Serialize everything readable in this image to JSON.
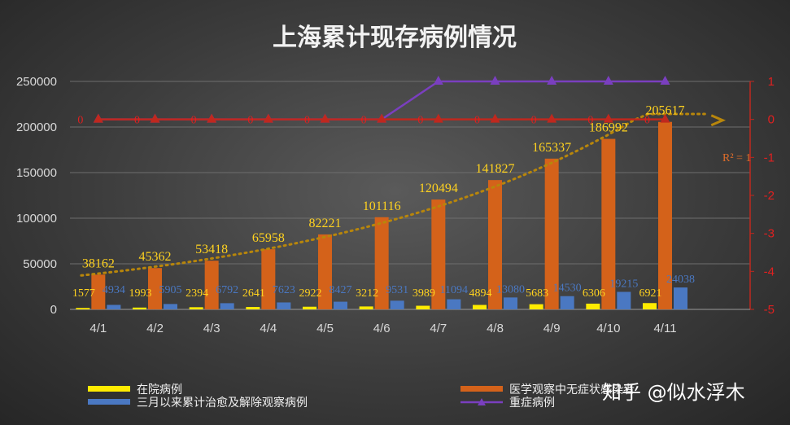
{
  "chart_data": {
    "type": "bar",
    "title": "上海累计现存病例情况",
    "categories": [
      "4/1",
      "4/2",
      "4/3",
      "4/4",
      "4/5",
      "4/6",
      "4/7",
      "4/8",
      "4/9",
      "4/10",
      "4/11"
    ],
    "series": [
      {
        "name": "在院病例",
        "kind": "bar",
        "axis": "left",
        "color": "#ffeb00",
        "values": [
          1577,
          1993,
          2394,
          2641,
          2922,
          3212,
          3989,
          4894,
          5683,
          6306,
          6921
        ]
      },
      {
        "name": "医学观察中无症状感染者",
        "kind": "bar",
        "axis": "left",
        "color": "#d4621a",
        "values": [
          38162,
          45362,
          53418,
          65958,
          82221,
          101116,
          120494,
          141827,
          165337,
          186992,
          205617
        ]
      },
      {
        "name": "三月以来累计治愈及解除观察病例",
        "kind": "bar",
        "axis": "left",
        "color": "#4a78c2",
        "values": [
          4934,
          5905,
          6792,
          7623,
          8427,
          9531,
          11094,
          13080,
          14530,
          19215,
          24038
        ]
      },
      {
        "name": "重症病例",
        "kind": "line",
        "axis": "right",
        "color": "#7a3fbf",
        "values": [
          0,
          0,
          0,
          0,
          0,
          0,
          1,
          1,
          1,
          1,
          1
        ]
      },
      {
        "kind": "line",
        "axis": "right",
        "color": "#c0281e",
        "values": [
          0,
          0,
          0,
          0,
          0,
          0,
          0,
          0,
          0,
          0,
          0
        ]
      }
    ],
    "trendline": {
      "series": "医学观察中无症状感染者",
      "type": "exponential",
      "label": "R² = 1",
      "style": "dotted",
      "color": "#b8860b"
    },
    "y_left": {
      "ylim": [
        0,
        250000
      ],
      "ticks": [
        "0",
        "50000",
        "100000",
        "150000",
        "200000",
        "250000"
      ]
    },
    "y_right": {
      "ylim": [
        -5,
        1
      ],
      "ticks": [
        "-5",
        "-4",
        "-3",
        "-2",
        "-1",
        "0",
        "1"
      ]
    },
    "grid": true,
    "legend_position": "bottom",
    "watermark": "知乎 @似水浮木"
  }
}
